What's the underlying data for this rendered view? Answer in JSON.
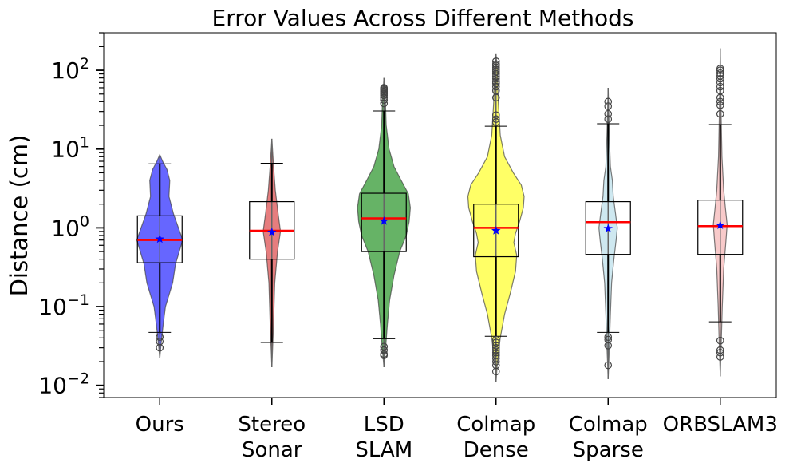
{
  "chart_data": {
    "type": "box+violin",
    "title": "Error Values Across Different Methods",
    "ylabel": "Distance (cm)",
    "xlabel": "",
    "yscale": "log",
    "ylim": [
      0.007,
      300
    ],
    "y_ticks": [
      {
        "value": 0.01,
        "base": "10",
        "exp": "−2"
      },
      {
        "value": 0.1,
        "base": "10",
        "exp": "−1"
      },
      {
        "value": 1,
        "base": "10",
        "exp": "0"
      },
      {
        "value": 10,
        "base": "10",
        "exp": "1"
      },
      {
        "value": 100,
        "base": "10",
        "exp": "2"
      }
    ],
    "grid": false,
    "legend": "none",
    "colors": {
      "median": "#ff0000",
      "mean_marker": "#0000ff",
      "box_edge": "#000000",
      "whisker": "#000000"
    },
    "categories": [
      {
        "label_lines": [
          "Ours"
        ],
        "violin_color": "#0000ff",
        "violin_min": 0.022,
        "violin_max": 8.5,
        "violin_profile": [
          [
            0.022,
            0.0
          ],
          [
            0.035,
            0.05
          ],
          [
            0.06,
            0.12
          ],
          [
            0.1,
            0.2
          ],
          [
            0.2,
            0.45
          ],
          [
            0.35,
            0.55
          ],
          [
            0.5,
            0.68
          ],
          [
            0.7,
            0.8
          ],
          [
            1.0,
            0.65
          ],
          [
            1.5,
            0.48
          ],
          [
            2.5,
            0.32
          ],
          [
            4.0,
            0.35
          ],
          [
            5.5,
            0.25
          ],
          [
            7.0,
            0.1
          ],
          [
            8.5,
            0.0
          ]
        ],
        "q1": 0.36,
        "median": 0.7,
        "q3": 1.42,
        "whisker_low": 0.047,
        "whisker_high": 6.5,
        "mean": 0.72,
        "fliers": [
          0.041,
          0.036,
          0.03
        ]
      },
      {
        "label_lines": [
          "Stereo",
          "Sonar"
        ],
        "violin_color": "#d62728",
        "violin_min": 0.017,
        "violin_max": 13.5,
        "violin_profile": [
          [
            0.017,
            0.0
          ],
          [
            0.05,
            0.05
          ],
          [
            0.2,
            0.1
          ],
          [
            0.5,
            0.2
          ],
          [
            0.9,
            0.3
          ],
          [
            1.5,
            0.22
          ],
          [
            3.0,
            0.12
          ],
          [
            6.0,
            0.06
          ],
          [
            13.5,
            0.0
          ]
        ],
        "q1": 0.4,
        "median": 0.92,
        "q3": 2.15,
        "whisker_low": 0.035,
        "whisker_high": 6.6,
        "mean": 0.88,
        "fliers": []
      },
      {
        "label_lines": [
          "LSD",
          "SLAM"
        ],
        "violin_color": "#008000",
        "violin_min": 0.017,
        "violin_max": 80,
        "violin_profile": [
          [
            0.017,
            0.0
          ],
          [
            0.03,
            0.06
          ],
          [
            0.06,
            0.12
          ],
          [
            0.12,
            0.2
          ],
          [
            0.25,
            0.35
          ],
          [
            0.5,
            0.55
          ],
          [
            0.8,
            0.78
          ],
          [
            1.2,
            0.88
          ],
          [
            1.8,
            0.92
          ],
          [
            2.7,
            0.85
          ],
          [
            4.0,
            0.6
          ],
          [
            6.0,
            0.35
          ],
          [
            10,
            0.18
          ],
          [
            20,
            0.08
          ],
          [
            40,
            0.05
          ],
          [
            80,
            0.0
          ]
        ],
        "q1": 0.5,
        "median": 1.32,
        "q3": 2.75,
        "whisker_low": 0.039,
        "whisker_high": 30.5,
        "mean": 1.22,
        "fliers": [
          0.031,
          0.028,
          0.025,
          0.024,
          38,
          42,
          45,
          48,
          50,
          52,
          54,
          56,
          58,
          60
        ]
      },
      {
        "label_lines": [
          "Colmap",
          "Dense"
        ],
        "violin_color": "#ffff00",
        "violin_min": 0.011,
        "violin_max": 160,
        "violin_profile": [
          [
            0.011,
            0.0
          ],
          [
            0.02,
            0.05
          ],
          [
            0.04,
            0.15
          ],
          [
            0.08,
            0.3
          ],
          [
            0.15,
            0.5
          ],
          [
            0.28,
            0.68
          ],
          [
            0.45,
            0.72
          ],
          [
            0.65,
            0.62
          ],
          [
            0.85,
            0.68
          ],
          [
            1.2,
            0.82
          ],
          [
            1.8,
            0.95
          ],
          [
            2.5,
            0.98
          ],
          [
            3.5,
            0.88
          ],
          [
            5.0,
            0.6
          ],
          [
            8.0,
            0.3
          ],
          [
            15,
            0.15
          ],
          [
            40,
            0.08
          ],
          [
            100,
            0.05
          ],
          [
            160,
            0.0
          ]
        ],
        "q1": 0.43,
        "median": 1.0,
        "q3": 2.0,
        "whisker_low": 0.042,
        "whisker_high": 19.5,
        "mean": 0.92,
        "fliers": [
          0.038,
          0.035,
          0.032,
          0.03,
          0.028,
          0.026,
          0.024,
          0.022,
          0.02,
          0.018,
          0.015,
          22,
          24,
          27,
          45,
          55,
          62,
          68,
          72,
          78,
          84,
          90,
          96,
          102,
          108,
          115,
          120,
          130
        ]
      },
      {
        "label_lines": [
          "Colmap",
          "Sparse"
        ],
        "violin_color": "#add8e6",
        "violin_min": 0.012,
        "violin_max": 60,
        "violin_profile": [
          [
            0.012,
            0.0
          ],
          [
            0.03,
            0.04
          ],
          [
            0.08,
            0.08
          ],
          [
            0.2,
            0.12
          ],
          [
            0.4,
            0.2
          ],
          [
            0.7,
            0.28
          ],
          [
            1.0,
            0.32
          ],
          [
            1.5,
            0.26
          ],
          [
            2.5,
            0.18
          ],
          [
            4.0,
            0.15
          ],
          [
            6.0,
            0.08
          ],
          [
            15,
            0.04
          ],
          [
            60,
            0.0
          ]
        ],
        "q1": 0.46,
        "median": 1.18,
        "q3": 2.15,
        "whisker_low": 0.047,
        "whisker_high": 21,
        "mean": 0.98,
        "fliers": [
          0.041,
          0.038,
          0.032,
          0.018,
          24,
          28,
          35,
          40
        ]
      },
      {
        "label_lines": [
          "ORBSLAM3"
        ],
        "violin_color": "#f4a6a6",
        "violin_min": 0.013,
        "violin_max": 190,
        "violin_profile": [
          [
            0.013,
            0.0
          ],
          [
            0.04,
            0.04
          ],
          [
            0.1,
            0.07
          ],
          [
            0.3,
            0.12
          ],
          [
            0.7,
            0.2
          ],
          [
            1.1,
            0.24
          ],
          [
            1.8,
            0.18
          ],
          [
            3.0,
            0.12
          ],
          [
            8.0,
            0.06
          ],
          [
            30,
            0.03
          ],
          [
            190,
            0.0
          ]
        ],
        "q1": 0.46,
        "median": 1.05,
        "q3": 2.25,
        "whisker_low": 0.064,
        "whisker_high": 20.5,
        "mean": 1.08,
        "fliers": [
          0.037,
          0.028,
          0.026,
          0.023,
          28,
          36,
          40,
          45,
          55,
          62,
          70,
          78,
          85,
          92,
          100,
          105
        ]
      }
    ]
  }
}
